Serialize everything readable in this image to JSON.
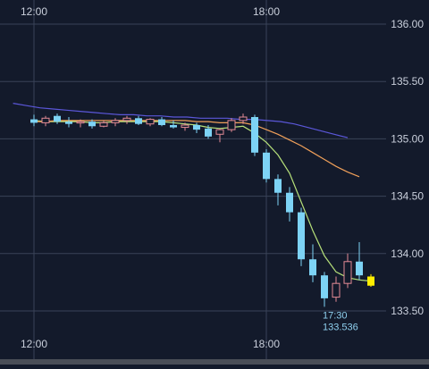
{
  "colors": {
    "background": "#131a2b",
    "grid": "#3a4358",
    "axis_text": "#c9cfdb",
    "bear_candle": "#7dd3f5",
    "bull_candle": "#e38b95",
    "current_candle": "#ffee00",
    "ma_short": "#b6e07a",
    "ma_mid": "#f0a05a",
    "ma_long": "#5b57d9",
    "annotation": "#8fd0ef"
  },
  "chart_data": {
    "type": "candlestick",
    "instrument_hint": "price chart",
    "x_ticks": [
      "12:00",
      "18:00"
    ],
    "x_tick_index": [
      0,
      20
    ],
    "x_range": [
      -1.8,
      34
    ],
    "ylim": [
      133.4,
      136.08
    ],
    "y_ticks": [
      "136.00",
      "135.50",
      "135.00",
      "134.50",
      "134.00",
      "133.50"
    ],
    "y_tick_values": [
      136.0,
      135.5,
      135.0,
      134.5,
      134.0,
      133.5
    ],
    "grid": true,
    "candles": [
      {
        "o": 135.17,
        "h": 135.21,
        "l": 135.11,
        "c": 135.14
      },
      {
        "o": 135.14,
        "h": 135.2,
        "l": 135.11,
        "c": 135.18
      },
      {
        "o": 135.2,
        "h": 135.22,
        "l": 135.13,
        "c": 135.15
      },
      {
        "o": 135.15,
        "h": 135.19,
        "l": 135.1,
        "c": 135.13
      },
      {
        "o": 135.14,
        "h": 135.17,
        "l": 135.1,
        "c": 135.15
      },
      {
        "o": 135.15,
        "h": 135.17,
        "l": 135.09,
        "c": 135.11
      },
      {
        "o": 135.11,
        "h": 135.16,
        "l": 135.1,
        "c": 135.14
      },
      {
        "o": 135.14,
        "h": 135.18,
        "l": 135.11,
        "c": 135.16
      },
      {
        "o": 135.16,
        "h": 135.2,
        "l": 135.13,
        "c": 135.18
      },
      {
        "o": 135.18,
        "h": 135.2,
        "l": 135.12,
        "c": 135.13
      },
      {
        "o": 135.13,
        "h": 135.18,
        "l": 135.11,
        "c": 135.17
      },
      {
        "o": 135.17,
        "h": 135.19,
        "l": 135.11,
        "c": 135.12
      },
      {
        "o": 135.12,
        "h": 135.16,
        "l": 135.09,
        "c": 135.1
      },
      {
        "o": 135.1,
        "h": 135.14,
        "l": 135.07,
        "c": 135.12
      },
      {
        "o": 135.12,
        "h": 135.14,
        "l": 135.05,
        "c": 135.08
      },
      {
        "o": 135.09,
        "h": 135.12,
        "l": 135.0,
        "c": 135.02
      },
      {
        "o": 135.04,
        "h": 135.09,
        "l": 134.97,
        "c": 135.08
      },
      {
        "o": 135.08,
        "h": 135.18,
        "l": 135.06,
        "c": 135.16
      },
      {
        "o": 135.16,
        "h": 135.22,
        "l": 135.13,
        "c": 135.19
      },
      {
        "o": 135.19,
        "h": 135.21,
        "l": 134.85,
        "c": 134.88
      },
      {
        "o": 134.88,
        "h": 134.91,
        "l": 134.62,
        "c": 134.65
      },
      {
        "o": 134.65,
        "h": 134.69,
        "l": 134.42,
        "c": 134.53
      },
      {
        "o": 134.53,
        "h": 134.58,
        "l": 134.28,
        "c": 134.36
      },
      {
        "o": 134.36,
        "h": 134.4,
        "l": 133.89,
        "c": 133.95
      },
      {
        "o": 133.95,
        "h": 134.08,
        "l": 133.75,
        "c": 133.81
      },
      {
        "o": 133.81,
        "h": 133.84,
        "l": 133.536,
        "c": 133.61
      },
      {
        "o": 133.62,
        "h": 133.8,
        "l": 133.58,
        "c": 133.74
      },
      {
        "o": 133.74,
        "h": 134.0,
        "l": 133.7,
        "c": 133.93
      },
      {
        "o": 133.93,
        "h": 134.1,
        "l": 133.77,
        "c": 133.81
      },
      {
        "o": 133.8,
        "h": 133.82,
        "l": 133.71,
        "c": 133.72
      }
    ],
    "current_candle_index": 29,
    "moving_averages": [
      {
        "role": "short",
        "values": [
          135.16,
          135.15,
          135.15,
          135.15,
          135.15,
          135.14,
          135.14,
          135.15,
          135.15,
          135.15,
          135.15,
          135.15,
          135.14,
          135.13,
          135.12,
          135.1,
          135.09,
          135.1,
          135.11,
          135.05,
          134.97,
          134.86,
          134.7,
          134.45,
          134.2,
          133.98,
          133.84,
          133.79,
          133.77,
          133.76
        ]
      },
      {
        "role": "mid",
        "values": [
          135.15,
          135.15,
          135.16,
          135.16,
          135.16,
          135.16,
          135.16,
          135.16,
          135.16,
          135.16,
          135.16,
          135.16,
          135.16,
          135.16,
          135.15,
          135.15,
          135.14,
          135.14,
          135.14,
          135.12,
          135.08,
          135.04,
          134.99,
          134.94,
          134.88,
          134.82,
          134.76,
          134.71,
          134.67
        ]
      },
      {
        "role": "long",
        "x_start": -1.8,
        "values": [
          135.31,
          135.29,
          135.27,
          135.26,
          135.25,
          135.24,
          135.23,
          135.22,
          135.21,
          135.21,
          135.2,
          135.2,
          135.19,
          135.19,
          135.18,
          135.18,
          135.18,
          135.17,
          135.17,
          135.16,
          135.15,
          135.13,
          135.1,
          135.07,
          135.04,
          135.01
        ]
      }
    ],
    "annotation": {
      "time": "17:30",
      "price": "133.536",
      "candle_index": 25
    }
  }
}
